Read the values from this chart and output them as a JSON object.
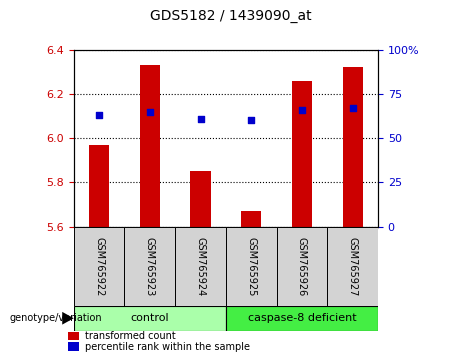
{
  "title": "GDS5182 / 1439090_at",
  "samples": [
    "GSM765922",
    "GSM765923",
    "GSM765924",
    "GSM765925",
    "GSM765926",
    "GSM765927"
  ],
  "bar_values": [
    5.97,
    6.33,
    5.85,
    5.67,
    6.26,
    6.32
  ],
  "bar_bottom": 5.6,
  "percentile_values": [
    63,
    65,
    61,
    60,
    66,
    67
  ],
  "ylim_left": [
    5.6,
    6.4
  ],
  "ylim_right": [
    0,
    100
  ],
  "yticks_left": [
    5.6,
    5.8,
    6.0,
    6.2,
    6.4
  ],
  "yticks_right": [
    0,
    25,
    50,
    75,
    100
  ],
  "bar_color": "#cc0000",
  "marker_color": "#0000cc",
  "groups": [
    {
      "label": "control",
      "indices": [
        0,
        1,
        2
      ],
      "color": "#aaffaa"
    },
    {
      "label": "caspase-8 deficient",
      "indices": [
        3,
        4,
        5
      ],
      "color": "#44ee44"
    }
  ],
  "group_row_label": "genotype/variation",
  "legend_bar_label": "transformed count",
  "legend_marker_label": "percentile rank within the sample",
  "tick_label_bg": "#d3d3d3",
  "left_axis_color": "#cc0000",
  "right_axis_color": "#0000cc",
  "right_tick_labels": [
    "0",
    "25",
    "50",
    "75",
    "100%"
  ]
}
